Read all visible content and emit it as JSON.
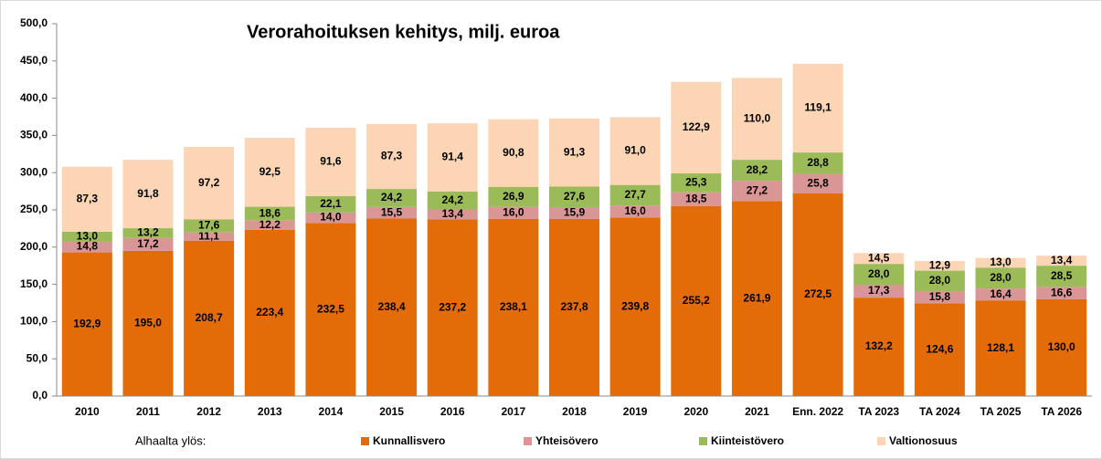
{
  "chart_data": {
    "type": "stacked_bar",
    "title": "Verorahoituksen kehitys, milj. euroa",
    "categories": [
      "2010",
      "2011",
      "2012",
      "2013",
      "2014",
      "2015",
      "2016",
      "2017",
      "2018",
      "2019",
      "2020",
      "2021",
      "Enn. 2022",
      "TA 2023",
      "TA 2024",
      "TA 2025",
      "TA 2026"
    ],
    "series": [
      {
        "name": "Kunnallisvero",
        "color": "#e36c09",
        "values": [
          192.9,
          195.0,
          208.7,
          223.4,
          232.5,
          238.4,
          237.2,
          238.1,
          237.8,
          239.8,
          255.2,
          261.9,
          272.5,
          132.2,
          124.6,
          128.1,
          130.0
        ],
        "value_labels": [
          "192,9",
          "195,0",
          "208,7",
          "223,4",
          "232,5",
          "238,4",
          "237,2",
          "238,1",
          "237,8",
          "239,8",
          "255,2",
          "261,9",
          "272,5",
          "132,2",
          "124,6",
          "128,1",
          "130,0"
        ]
      },
      {
        "name": "Yhteisövero",
        "color": "#d99694",
        "values": [
          14.8,
          17.2,
          11.1,
          12.2,
          14.0,
          15.5,
          13.4,
          16.0,
          15.9,
          16.0,
          18.5,
          27.2,
          25.8,
          17.3,
          15.8,
          16.4,
          16.6
        ],
        "value_labels": [
          "14,8",
          "17,2",
          "11,1",
          "12,2",
          "14,0",
          "15,5",
          "13,4",
          "16,0",
          "15,9",
          "16,0",
          "18,5",
          "27,2",
          "25,8",
          "17,3",
          "15,8",
          "16,4",
          "16,6"
        ]
      },
      {
        "name": "Kiinteistövero",
        "color": "#9bbb59",
        "values": [
          13.0,
          13.2,
          17.6,
          18.6,
          22.1,
          24.2,
          24.2,
          26.9,
          27.6,
          27.7,
          25.3,
          28.2,
          28.8,
          28.0,
          28.0,
          28.0,
          28.5
        ],
        "value_labels": [
          "13,0",
          "13,2",
          "17,6",
          "18,6",
          "22,1",
          "24,2",
          "24,2",
          "26,9",
          "27,6",
          "27,7",
          "25,3",
          "28,2",
          "28,8",
          "28,0",
          "28,0",
          "28,0",
          "28,5"
        ]
      },
      {
        "name": "Valtionosuus",
        "color": "#fcd5b5",
        "values": [
          87.3,
          91.8,
          97.2,
          92.5,
          91.6,
          87.3,
          91.4,
          90.8,
          91.3,
          91.0,
          122.9,
          110.0,
          119.1,
          14.5,
          12.9,
          13.0,
          13.4
        ],
        "value_labels": [
          "87,3",
          "91,8",
          "97,2",
          "92,5",
          "91,6",
          "87,3",
          "91,4",
          "90,8",
          "91,3",
          "91,0",
          "122,9",
          "110,0",
          "119,1",
          "14,5",
          "12,9",
          "13,0",
          "13,4"
        ]
      }
    ],
    "legend_title": "Alhaalta ylös:",
    "ylim": [
      0,
      500
    ],
    "yticks": [
      {
        "value": 0,
        "label": "0,0"
      },
      {
        "value": 50,
        "label": "50,0"
      },
      {
        "value": 100,
        "label": "100,0"
      },
      {
        "value": 150,
        "label": "150,0"
      },
      {
        "value": 200,
        "label": "200,0"
      },
      {
        "value": 250,
        "label": "250,0"
      },
      {
        "value": 300,
        "label": "300,0"
      },
      {
        "value": 350,
        "label": "350,0"
      },
      {
        "value": 400,
        "label": "400,0"
      },
      {
        "value": 450,
        "label": "450,0"
      },
      {
        "value": 500,
        "label": "500,0"
      }
    ],
    "grid": false,
    "legend": "bottom"
  }
}
